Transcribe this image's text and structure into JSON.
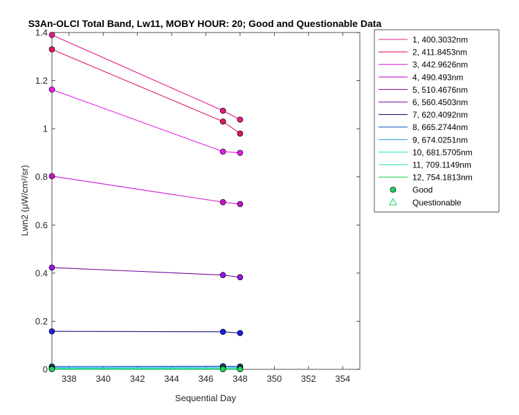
{
  "chart_data": {
    "type": "line",
    "title": "S3An-OLCI Total Band, Lw11, MOBY HOUR: 20;  Good and Questionable Data",
    "xlabel": "Sequential Day",
    "ylabel": "Lwn2 (μW/cm²/sr)",
    "xlim": [
      337,
      355
    ],
    "ylim": [
      0,
      1.4
    ],
    "xticks": [
      338,
      340,
      342,
      344,
      346,
      348,
      350,
      352,
      354
    ],
    "yticks": [
      0,
      0.2,
      0.4,
      0.6,
      0.8,
      1,
      1.2,
      1.4
    ],
    "x": [
      337,
      347,
      348
    ],
    "grid": false,
    "legend_position": "outside-right",
    "series": [
      {
        "name": "1, 400.3032nm",
        "color": "#e6198c",
        "marker_color": "#e6198c",
        "values": [
          1.39,
          1.075,
          1.038
        ]
      },
      {
        "name": "2, 411.8453nm",
        "color": "#e0195a",
        "marker_color": "#e0195a",
        "values": [
          1.33,
          1.03,
          0.98
        ]
      },
      {
        "name": "3, 442.9626nm",
        "color": "#e61ee6",
        "marker_color": "#e61ee6",
        "values": [
          1.163,
          0.905,
          0.9
        ]
      },
      {
        "name": "4,  490.493nm",
        "color": "#cc14cc",
        "marker_color": "#cc14cc",
        "values": [
          0.803,
          0.695,
          0.687
        ]
      },
      {
        "name": "5, 510.4676nm",
        "color": "#9b149b",
        "marker_color": "#9b149b",
        "values": [
          null,
          null,
          null
        ]
      },
      {
        "name": "6, 560.4503nm",
        "color": "#6e0a96",
        "marker_color": "#9614e6",
        "values": [
          0.423,
          0.392,
          0.383
        ]
      },
      {
        "name": "7, 620.4092nm",
        "color": "#141478",
        "marker_color": "#1e1ee6",
        "values": [
          0.158,
          0.156,
          0.151
        ]
      },
      {
        "name": "8, 665.2744nm",
        "color": "#1e64c8",
        "marker_color": "#1e64c8",
        "values": [
          0.012,
          0.013,
          0.012
        ]
      },
      {
        "name": "9, 674.0251nm",
        "color": "#28a0e6",
        "marker_color": "#28a0e6",
        "values": [
          0.008,
          0.009,
          0.009
        ]
      },
      {
        "name": "10, 681.5705nm",
        "color": "#28e6c8",
        "marker_color": "#28e6c8",
        "values": [
          0.004,
          0.005,
          0.005
        ]
      },
      {
        "name": "11, 709.1149nm",
        "color": "#14e696",
        "marker_color": "#14e696",
        "values": [
          0.002,
          0.002,
          0.002
        ]
      },
      {
        "name": "12, 754.1813nm",
        "color": "#1ed25a",
        "marker_color": "#1ed25a",
        "values": [
          0.001,
          0.001,
          0.001
        ]
      }
    ],
    "legend_markers": [
      {
        "name": "Good",
        "symbol": "circle",
        "color": "#1ed25a"
      },
      {
        "name": "Questionable",
        "symbol": "triangle",
        "color": "#1ed25a"
      }
    ]
  }
}
